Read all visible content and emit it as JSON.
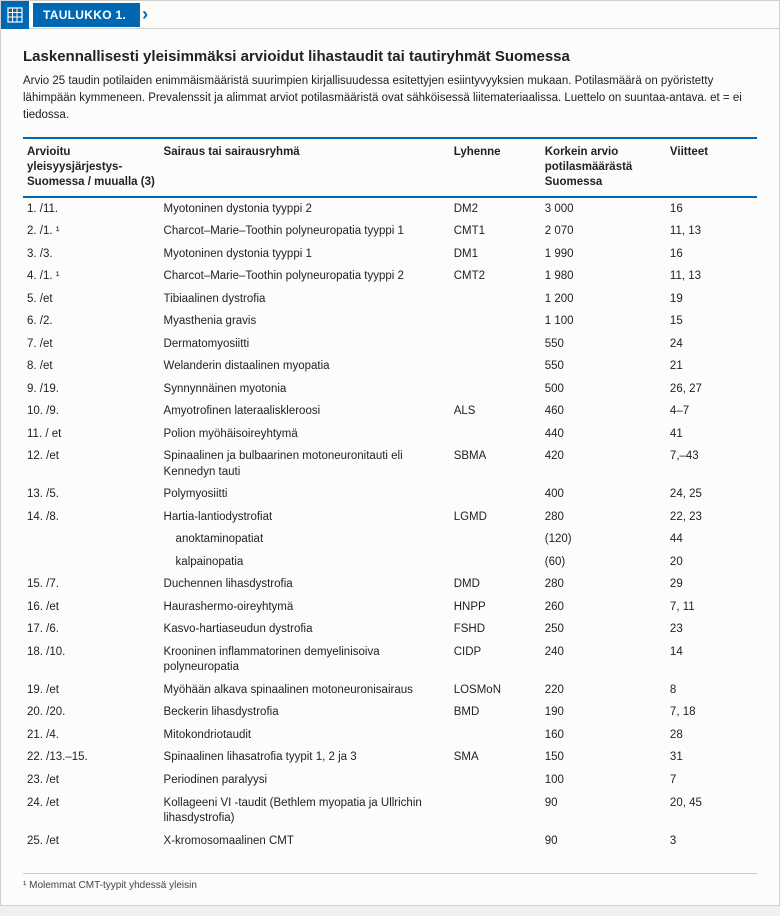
{
  "header": {
    "label": "TAULUKKO 1."
  },
  "title": "Laskennallisesti yleisimmäksi arvioidut lihastaudit tai tautiryhmät Suomessa",
  "subtitle": "Arvio 25 taudin potilaiden enimmäismääristä suurimpien kirjallisuudessa esitettyjen esiintyvyyksien mukaan. Potilasmäärä on pyöristetty lähimpään kymmeneen. Prevalenssit ja alimmat arviot potilasmääristä ovat sähköisessä liitemateriaalissa. Luettelo on suuntaa-antava. et = ei tiedossa.",
  "columns": {
    "rank": "Arvioitu yleisyysjärjestys- Suomessa / muualla (3)",
    "name": "Sairaus tai sairausryhmä",
    "abbr": "Lyhenne",
    "est": "Korkein arvio potilasmäärästä Suomessa",
    "ref": "Viitteet"
  },
  "rows": [
    {
      "rank": "1. /11.",
      "name": "Myotoninen dystonia tyyppi 2",
      "abbr": "DM2",
      "est": "3 000",
      "ref": "16"
    },
    {
      "rank": "2. /1. ¹",
      "name": "Charcot–Marie–Toothin polyneuropatia tyyppi 1",
      "abbr": "CMT1",
      "est": "2 070",
      "ref": "11, 13"
    },
    {
      "rank": "3. /3.",
      "name": "Myotoninen dystonia tyyppi 1",
      "abbr": "DM1",
      "est": "1 990",
      "ref": "16"
    },
    {
      "rank": "4. /1. ¹",
      "name": "Charcot–Marie–Toothin polyneuropatia tyyppi 2",
      "abbr": "CMT2",
      "est": "1 980",
      "ref": "11, 13"
    },
    {
      "rank": "5. /et",
      "name": "Tibiaalinen dystrofia",
      "abbr": "",
      "est": "1 200",
      "ref": "19"
    },
    {
      "rank": "6. /2.",
      "name": "Myasthenia gravis",
      "abbr": "",
      "est": "1 100",
      "ref": "15"
    },
    {
      "rank": "7. /et",
      "name": "Dermatomyosiitti",
      "abbr": "",
      "est": "550",
      "ref": "24"
    },
    {
      "rank": "8. /et",
      "name": "Welanderin distaalinen myopatia",
      "abbr": "",
      "est": "550",
      "ref": "21"
    },
    {
      "rank": "9. /19.",
      "name": "Synnynnäinen myotonia",
      "abbr": "",
      "est": "500",
      "ref": "26, 27"
    },
    {
      "rank": "10. /9.",
      "name": "Amyotrofinen lateraaliskleroosi",
      "abbr": "ALS",
      "est": "460",
      "ref": "4–7"
    },
    {
      "rank": "11. / et",
      "name": "Polion myöhäisoireyhtymä",
      "abbr": "",
      "est": "440",
      "ref": "41"
    },
    {
      "rank": "12. /et",
      "name": "Spinaalinen ja bulbaarinen motoneuronitauti eli Kennedyn tauti",
      "abbr": "SBMA",
      "est": "420",
      "ref": "7,–43"
    },
    {
      "rank": "13. /5.",
      "name": "Polymyosiitti",
      "abbr": "",
      "est": "400",
      "ref": "24, 25"
    },
    {
      "rank": "14. /8.",
      "name": "Hartia-lantiodystrofiat",
      "abbr": "LGMD",
      "est": "280",
      "ref": "22, 23"
    },
    {
      "rank": "",
      "name": "  anoktaminopatiat",
      "abbr": "",
      "est": "(120)",
      "ref": "44",
      "indent": true
    },
    {
      "rank": "",
      "name": "  kalpainopatia",
      "abbr": "",
      "est": "(60)",
      "ref": "20",
      "indent": true
    },
    {
      "rank": "15. /7.",
      "name": "Duchennen lihasdystrofia",
      "abbr": "DMD",
      "est": "280",
      "ref": "29"
    },
    {
      "rank": "16. /et",
      "name": "Haurashermo-oireyhtymä",
      "abbr": "HNPP",
      "est": "260",
      "ref": "7, 11"
    },
    {
      "rank": "17. /6.",
      "name": "Kasvo-hartiaseudun dystrofia",
      "abbr": "FSHD",
      "est": "250",
      "ref": "23"
    },
    {
      "rank": "18. /10.",
      "name": "Krooninen inflammatorinen demyelinisoiva polyneuropatia",
      "abbr": "CIDP",
      "est": "240",
      "ref": "14"
    },
    {
      "rank": "19. /et",
      "name": "Myöhään alkava spinaalinen motoneuronisairaus",
      "abbr": "LOSMoN",
      "est": "220",
      "ref": "8"
    },
    {
      "rank": "20. /20.",
      "name": "Beckerin lihasdystrofia",
      "abbr": "BMD",
      "est": "190",
      "ref": "7, 18"
    },
    {
      "rank": "21. /4.",
      "name": "Mitokondriotaudit",
      "abbr": "",
      "est": "160",
      "ref": "28"
    },
    {
      "rank": "22. /13.–15.",
      "name": "Spinaalinen lihasatrofia tyypit 1, 2 ja 3",
      "abbr": "SMA",
      "est": "150",
      "ref": "31"
    },
    {
      "rank": "23. /et",
      "name": "Periodinen paralyysi",
      "abbr": "",
      "est": "100",
      "ref": "7"
    },
    {
      "rank": "24. /et",
      "name": "Kollageeni VI -taudit (Bethlem myopatia ja Ullrichin lihasdystrofia)",
      "abbr": "",
      "est": "90",
      "ref": "20, 45"
    },
    {
      "rank": "25. /et",
      "name": "X-kromosomaalinen CMT",
      "abbr": "",
      "est": "90",
      "ref": "3"
    }
  ],
  "footnote": "¹ Molemmat CMT-tyypit yhdessä yleisin",
  "colors": {
    "accent": "#0068b3",
    "background": "#fcfcfa",
    "text": "#222222"
  }
}
